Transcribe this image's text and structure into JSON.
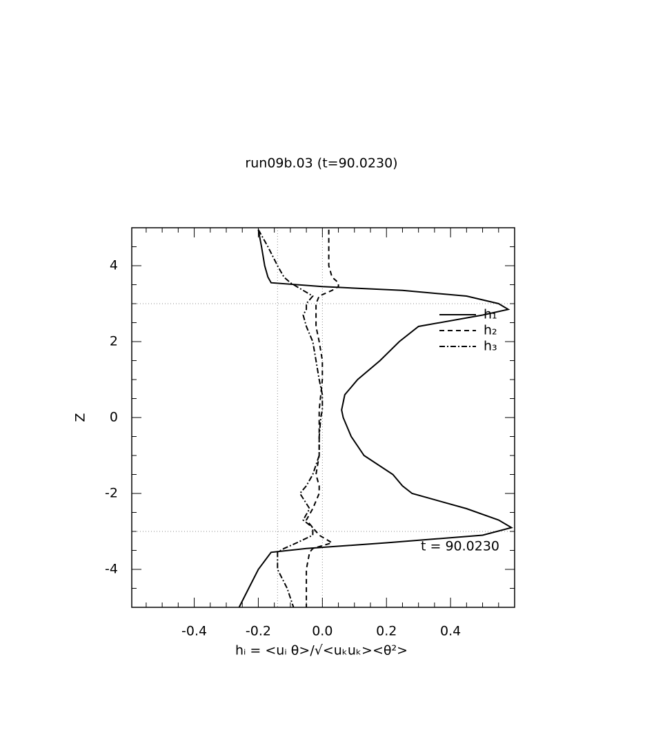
{
  "chart_data": {
    "type": "line",
    "title": "run09b.03 (t=90.0230)",
    "x_label": "hᵢ = <uᵢ θ>/√<uₖuₖ><θ²>",
    "y_label": "Z",
    "annotation": "t = 90.0230",
    "z": [
      4.95,
      4.5,
      4.0,
      3.7,
      3.55,
      3.45,
      3.35,
      3.2,
      3.0,
      2.85,
      2.7,
      2.4,
      2.0,
      1.5,
      1.0,
      0.6,
      0.2,
      0,
      -0.5,
      -1.0,
      -1.5,
      -1.8,
      -2.0,
      -2.4,
      -2.7,
      -2.9,
      -3.1,
      -3.3,
      -3.45,
      -3.55,
      -4.0,
      -4.5,
      -5.0
    ],
    "series": [
      {
        "name": "h₁",
        "color": "#000000",
        "dash": "none",
        "values": [
          -0.2,
          -0.19,
          -0.18,
          -0.17,
          -0.16,
          0.0,
          0.25,
          0.45,
          0.55,
          0.58,
          0.5,
          0.3,
          0.24,
          0.18,
          0.11,
          0.07,
          0.06,
          0.065,
          0.09,
          0.13,
          0.22,
          0.25,
          0.28,
          0.45,
          0.55,
          0.59,
          0.5,
          0.2,
          -0.05,
          -0.16,
          -0.2,
          -0.23,
          -0.26
        ]
      },
      {
        "name": "h₂",
        "color": "#000000",
        "dash": "7,5",
        "values": [
          0.02,
          0.02,
          0.02,
          0.03,
          0.05,
          0.05,
          0.03,
          -0.01,
          -0.02,
          -0.02,
          -0.02,
          -0.02,
          -0.01,
          0,
          0.0,
          -0.005,
          -0.01,
          -0.01,
          -0.01,
          -0.01,
          -0.02,
          -0.01,
          -0.01,
          -0.03,
          -0.05,
          -0.03,
          -0.01,
          0.03,
          -0.03,
          -0.04,
          -0.05,
          -0.05,
          -0.05
        ]
      },
      {
        "name": "h₃",
        "color": "#000000",
        "dash": "8,3,2,3",
        "values": [
          -0.2,
          -0.17,
          -0.14,
          -0.12,
          -0.1,
          -0.08,
          -0.06,
          -0.03,
          -0.05,
          -0.05,
          -0.06,
          -0.05,
          -0.03,
          -0.02,
          -0.01,
          0,
          0,
          -0.005,
          -0.01,
          -0.01,
          -0.03,
          -0.05,
          -0.07,
          -0.04,
          -0.06,
          -0.03,
          -0.03,
          -0.08,
          -0.12,
          -0.14,
          -0.14,
          -0.11,
          -0.09
        ]
      }
    ],
    "xlim": [
      -0.595,
      0.6
    ],
    "ylim": [
      -5,
      5
    ],
    "xticks": [
      -0.4,
      -0.2,
      {
        "value": 0,
        "label": "0.0"
      },
      0.2,
      0.4
    ],
    "yticks": [
      -4,
      -2,
      0,
      2,
      4
    ],
    "xticks_minor": [
      -0.55,
      -0.5,
      -0.45,
      -0.35,
      -0.3,
      -0.25,
      -0.15,
      -0.1,
      -0.05,
      0.05,
      0.1,
      0.15,
      0.25,
      0.3,
      0.35,
      0.45,
      0.5,
      0.55
    ],
    "yticks_minor": [
      -4.5,
      -3.5,
      -3,
      -2.5,
      -1.5,
      -1,
      -0.5,
      0.5,
      1,
      1.5,
      2.5,
      3,
      3.5,
      4.5
    ],
    "x_reference_lines": [
      -0.14,
      0
    ],
    "y_reference_lines": [
      3,
      -3
    ]
  }
}
